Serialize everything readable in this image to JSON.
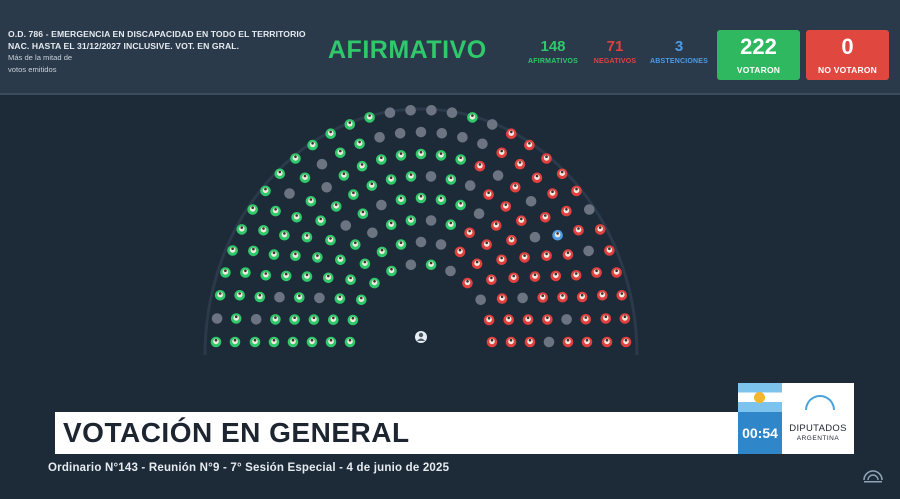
{
  "header": {
    "motion_line1": "O.D. 786 - EMERGENCIA EN DISCAPACIDAD EN TODO EL TERRITORIO",
    "motion_line2": "NAC. HASTA EL 31/12/2027 INCLUSIVE. VOT. EN GRAL.",
    "majority_line1": "Más de la mitad de",
    "majority_line2": "votos emitidos",
    "result": "AFIRMATIVO",
    "afirmativos": {
      "value": "148",
      "label": "AFIRMATIVOS"
    },
    "negativos": {
      "value": "71",
      "label": "NEGATIVOS"
    },
    "abstenciones": {
      "value": "3",
      "label": "ABSTENCIONES"
    },
    "votaron": {
      "value": "222",
      "label": "VOTARON"
    },
    "no_votaron": {
      "value": "0",
      "label": "NO VOTARON"
    }
  },
  "colors": {
    "afirmativo": "#2fc86a",
    "negativo": "#e0413f",
    "abstencion": "#4f9be6",
    "ausente": "#6b7480"
  },
  "lower_third": {
    "title": "VOTACIÓN EN GENERAL",
    "timer": "00:54",
    "institution_line1": "DIPUTADOS",
    "institution_line2": "ARGENTINA",
    "session": "Ordinario N°143 - Reunión N°9 - 7° Sesión Especial - 4 de junio de 2025"
  },
  "icons": {
    "flag": "argentina-flag-icon",
    "logo": "diputados-logo-icon",
    "president_seat": "president-seat-icon"
  }
}
